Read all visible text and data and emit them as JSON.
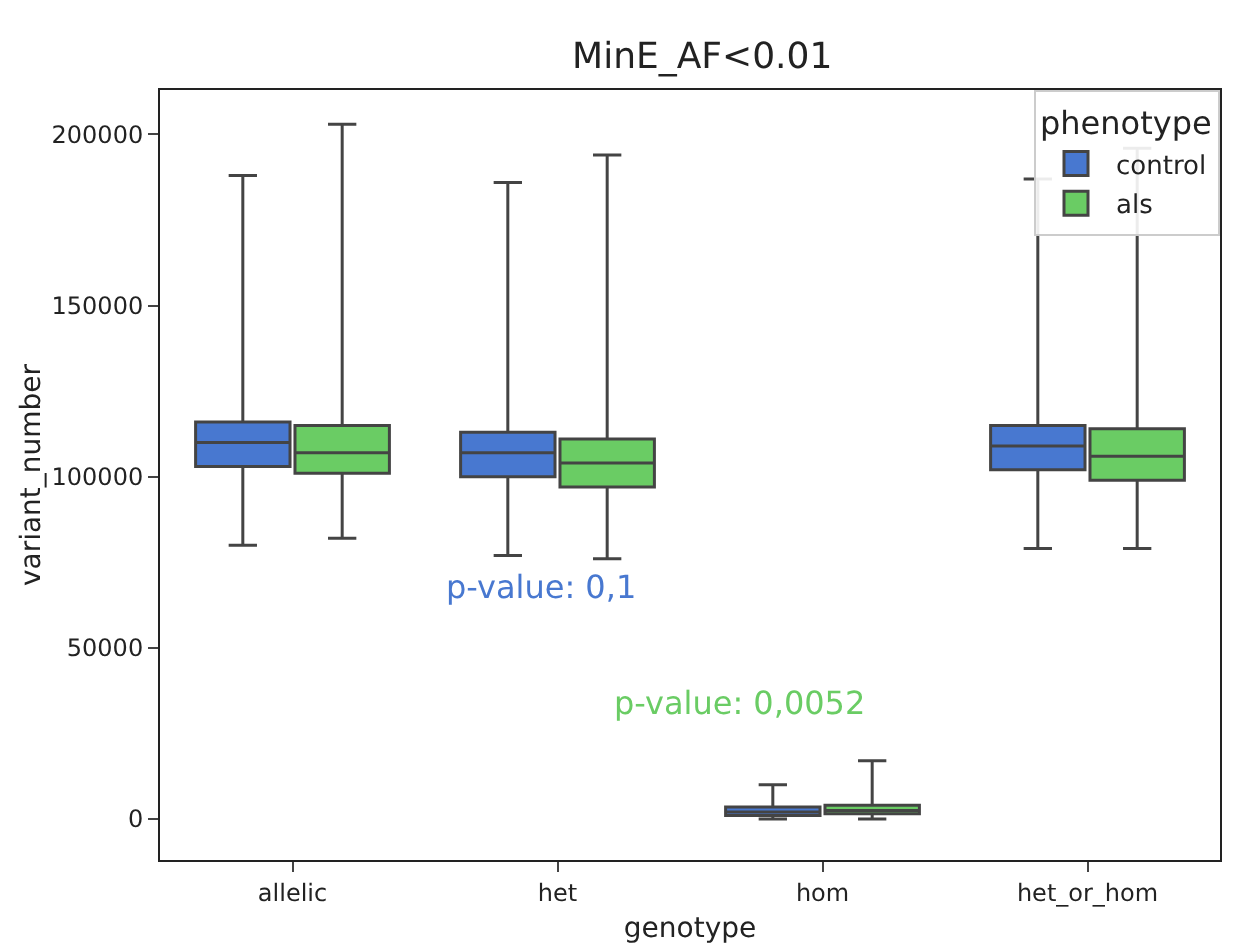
{
  "chart_data": {
    "type": "box",
    "title": "MinE_AF<0.01",
    "xlabel": "genotype",
    "ylabel": "variant_number",
    "legend_title": "phenotype",
    "legend": "top right",
    "grid": false,
    "categories": [
      "allelic",
      "het",
      "hom",
      "het_or_hom"
    ],
    "ylim": [
      -12000,
      213000
    ],
    "yticks": [
      0,
      50000,
      100000,
      150000,
      200000
    ],
    "series": [
      {
        "name": "control",
        "color": "#4878d0",
        "boxes": [
          {
            "low": 80000,
            "q1": 103000,
            "median": 110000,
            "q3": 116000,
            "high": 188000
          },
          {
            "low": 77000,
            "q1": 100000,
            "median": 107000,
            "q3": 113000,
            "high": 186000
          },
          {
            "low": 0,
            "q1": 1000,
            "median": 2000,
            "q3": 3500,
            "high": 10000
          },
          {
            "low": 79000,
            "q1": 102000,
            "median": 109000,
            "q3": 115000,
            "high": 187000
          }
        ]
      },
      {
        "name": "als",
        "color": "#6acc64",
        "boxes": [
          {
            "low": 82000,
            "q1": 101000,
            "median": 107000,
            "q3": 115000,
            "high": 203000
          },
          {
            "low": 76000,
            "q1": 97000,
            "median": 104000,
            "q3": 111000,
            "high": 194000
          },
          {
            "low": 0,
            "q1": 1500,
            "median": 2500,
            "q3": 4000,
            "high": 17000
          },
          {
            "low": 79000,
            "q1": 99000,
            "median": 106000,
            "q3": 114000,
            "high": 196000
          }
        ]
      }
    ],
    "annotations": [
      "p-value: 0,1",
      "p-value: 0,0052"
    ]
  }
}
